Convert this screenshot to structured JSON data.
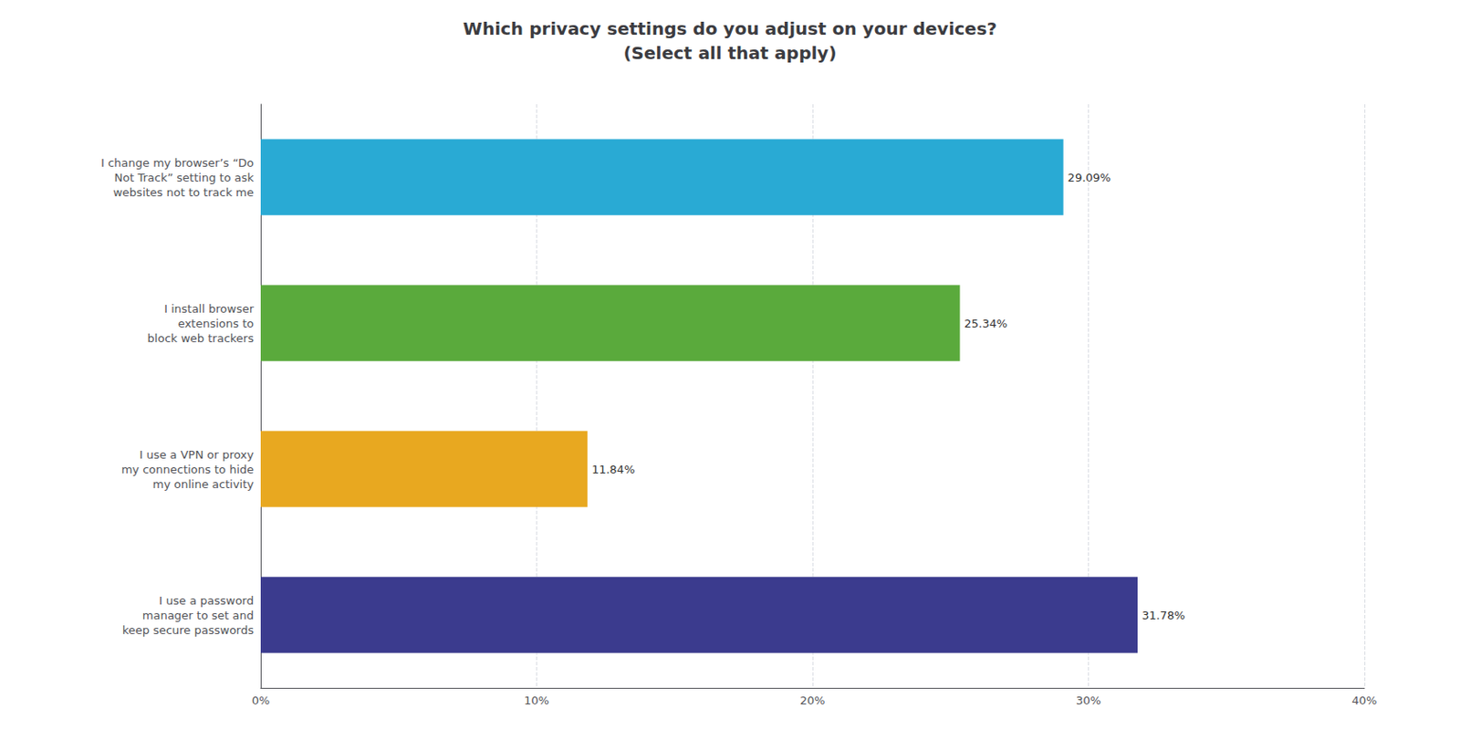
{
  "chart_data": {
    "type": "bar",
    "orientation": "horizontal",
    "title": "Which privacy settings do you adjust on your devices?\n(Select all that apply)",
    "categories": [
      "I use a password\nmanager to set and\nkeep secure passwords",
      "I use a VPN or proxy\nmy connections to hide\nmy online activity",
      "I install browser\nextensions to\nblock web trackers",
      "I change my browser’s “Do\nNot Track” setting to ask\nwebsites not to track me"
    ],
    "values": [
      31.78,
      11.84,
      25.34,
      29.09
    ],
    "value_labels": [
      "31.78%",
      "11.84%",
      "25.34%",
      "29.09%"
    ],
    "colors": [
      "#3b3b8e",
      "#e8a820",
      "#5aaa3c",
      "#29aad4"
    ],
    "xlim": [
      0,
      40
    ],
    "xticks": [
      {
        "value": 0,
        "label": "0%"
      },
      {
        "value": 10,
        "label": "10%"
      },
      {
        "value": 20,
        "label": "20%"
      },
      {
        "value": 30,
        "label": "30%"
      },
      {
        "value": 40,
        "label": "40%"
      }
    ],
    "grid": true,
    "data_labels": true
  }
}
